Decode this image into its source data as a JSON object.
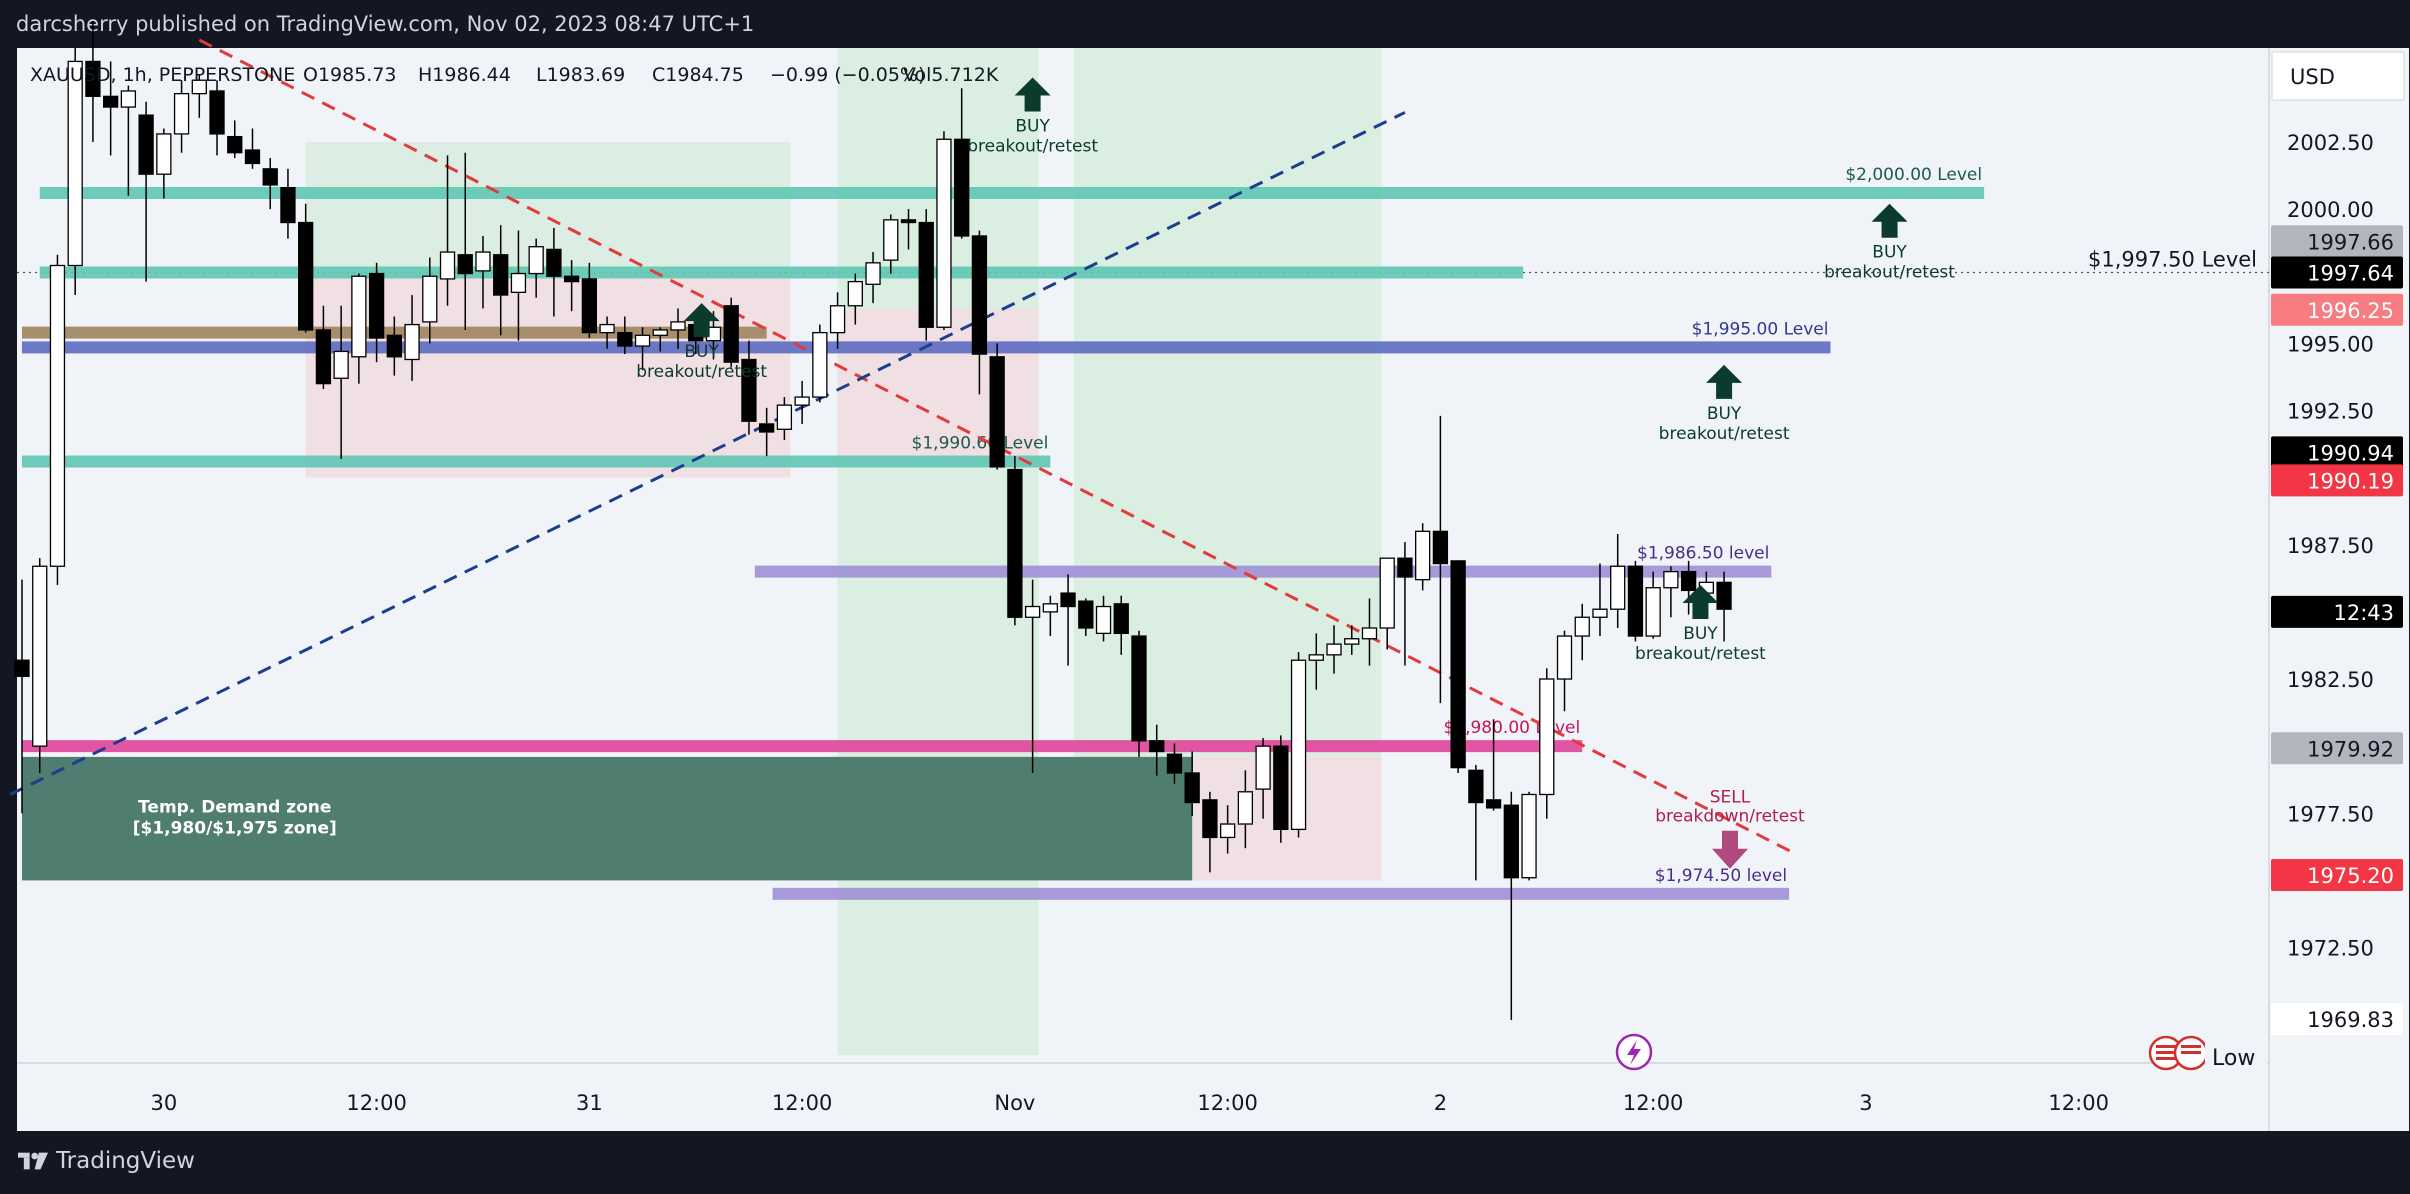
{
  "header": {
    "published_by": "darcsherry published on TradingView.com, Nov 02, 2023 08:47 UTC+1"
  },
  "footer": {
    "brand": "TradingView"
  },
  "colors": {
    "background": "#131722",
    "plot_bg": "#f0f4f8",
    "bull_candle": "#ffffff",
    "bear_candle": "#000000",
    "teal_level": "#5fc7b4",
    "magenta_level": "#e0449a",
    "purple_level": "#9f8fd6",
    "blue_level": "#5c6bc0",
    "brown_level": "#a0845c",
    "demand_zone": "#4f7d6f",
    "red_trend": "#e23b3b",
    "blue_trend": "#1c3e8c",
    "buy_arrow": "#0b3b2d",
    "sell_arrow": "#b04a7e"
  },
  "chart_data": {
    "type": "candlestick",
    "symbol_line": {
      "symbol": "XAUUSD, 1h, PEPPERSTONE",
      "open": "O1985.73",
      "high": "H1986.44",
      "low": "L1983.69",
      "close": "C1984.75",
      "change": "−0.99 (−0.05%)",
      "volume": "Vol5.712K"
    },
    "currency": "USD",
    "y_range": [
      1968.2,
      2006.0
    ],
    "y_ticks": [
      "2002.50",
      "2000.00",
      "1995.00",
      "1992.50",
      "1987.50",
      "1982.50",
      "1977.50",
      "1972.50"
    ],
    "x_range": [
      0,
      200
    ],
    "x_ticks": [
      {
        "label": "30",
        "x": 12
      },
      {
        "label": "12:00",
        "x": 30
      },
      {
        "label": "31",
        "x": 48
      },
      {
        "label": "12:00",
        "x": 66
      },
      {
        "label": "Nov",
        "x": 84
      },
      {
        "label": "12:00",
        "x": 102
      },
      {
        "label": "2",
        "x": 120
      },
      {
        "label": "12:00",
        "x": 138
      },
      {
        "label": "3",
        "x": 156
      },
      {
        "label": "12:00",
        "x": 174
      }
    ],
    "candles": [
      [
        0.0,
        1983.2,
        1986.2,
        1977.5,
        1982.6
      ],
      [
        1.5,
        1980.0,
        1987.0,
        1979.0,
        1986.7
      ],
      [
        3.0,
        1986.7,
        1998.3,
        1986.0,
        1997.9
      ],
      [
        4.5,
        1997.9,
        2006.0,
        1996.8,
        2005.5
      ],
      [
        6.0,
        2005.5,
        2007.0,
        2002.5,
        2004.2
      ],
      [
        7.5,
        2004.2,
        2005.5,
        2002.0,
        2003.8
      ],
      [
        9.0,
        2003.8,
        2004.6,
        2000.5,
        2004.4
      ],
      [
        10.5,
        2003.5,
        2004.0,
        1997.3,
        2001.3
      ],
      [
        12.0,
        2001.3,
        2003.0,
        2000.4,
        2002.8
      ],
      [
        13.5,
        2002.8,
        2004.8,
        2002.1,
        2004.3
      ],
      [
        15.0,
        2004.3,
        2005.0,
        2003.4,
        2004.8
      ],
      [
        16.5,
        2004.4,
        2004.8,
        2002.0,
        2002.8
      ],
      [
        18.0,
        2002.7,
        2003.3,
        2001.9,
        2002.1
      ],
      [
        19.5,
        2002.2,
        2003.0,
        2001.5,
        2001.7
      ],
      [
        21.0,
        2001.5,
        2001.9,
        2000.0,
        2000.9
      ],
      [
        22.5,
        2000.8,
        2001.5,
        1998.9,
        1999.5
      ],
      [
        24.0,
        1999.5,
        2000.2,
        1995.4,
        1995.5
      ],
      [
        25.5,
        1995.5,
        1996.4,
        1993.3,
        1993.5
      ],
      [
        27.0,
        1993.7,
        1996.4,
        1990.7,
        1994.7
      ],
      [
        28.5,
        1994.5,
        1997.6,
        1993.5,
        1997.5
      ],
      [
        30.0,
        1997.6,
        1998.0,
        1994.3,
        1995.2
      ],
      [
        31.5,
        1995.3,
        1996.0,
        1993.8,
        1994.5
      ],
      [
        33.0,
        1994.4,
        1996.8,
        1993.6,
        1995.7
      ],
      [
        34.5,
        1995.8,
        1998.2,
        1995.0,
        1997.5
      ],
      [
        36.0,
        1997.4,
        2002.0,
        1996.4,
        1998.4
      ],
      [
        37.5,
        1998.3,
        2002.1,
        1995.5,
        1997.6
      ],
      [
        39.0,
        1997.7,
        1999.0,
        1996.3,
        1998.4
      ],
      [
        40.5,
        1998.3,
        1999.4,
        1995.3,
        1996.8
      ],
      [
        42.0,
        1996.9,
        1999.2,
        1995.1,
        1997.6
      ],
      [
        43.5,
        1997.6,
        1998.9,
        1996.7,
        1998.6
      ],
      [
        45.0,
        1998.5,
        1999.3,
        1996.0,
        1997.5
      ],
      [
        46.5,
        1997.5,
        1998.1,
        1996.2,
        1997.3
      ],
      [
        48.0,
        1997.4,
        1998.0,
        1995.2,
        1995.4
      ],
      [
        49.5,
        1995.4,
        1996.0,
        1994.8,
        1995.7
      ],
      [
        51.0,
        1995.4,
        1996.0,
        1994.6,
        1994.9
      ],
      [
        52.5,
        1994.9,
        1995.6,
        1994.0,
        1995.3
      ],
      [
        54.0,
        1995.3,
        1995.6,
        1994.7,
        1995.5
      ],
      [
        55.5,
        1995.5,
        1996.3,
        1994.8,
        1995.8
      ],
      [
        57.0,
        1995.7,
        1996.0,
        1994.6,
        1995.1
      ],
      [
        58.5,
        1995.1,
        1996.2,
        1994.4,
        1995.6
      ],
      [
        60.0,
        1996.4,
        1996.7,
        1994.1,
        1994.3
      ],
      [
        61.5,
        1994.4,
        1995.1,
        1991.6,
        1992.1
      ],
      [
        63.0,
        1992.0,
        1992.6,
        1990.8,
        1991.7
      ],
      [
        64.5,
        1991.8,
        1993.0,
        1991.4,
        1992.7
      ],
      [
        66.0,
        1992.7,
        1993.6,
        1992.0,
        1993.0
      ],
      [
        67.5,
        1993.0,
        1995.7,
        1992.8,
        1995.4
      ],
      [
        69.0,
        1995.4,
        1996.9,
        1994.8,
        1996.4
      ],
      [
        70.5,
        1996.4,
        1997.6,
        1995.7,
        1997.3
      ],
      [
        72.0,
        1997.2,
        1998.4,
        1996.5,
        1998.0
      ],
      [
        73.5,
        1998.1,
        1999.8,
        1997.6,
        1999.6
      ],
      [
        75.0,
        1999.6,
        2000.0,
        1998.5,
        1999.5
      ],
      [
        76.5,
        1999.5,
        2000.0,
        1995.1,
        1995.6
      ],
      [
        78.0,
        1995.6,
        2002.9,
        1995.5,
        2002.6
      ],
      [
        79.5,
        2002.6,
        2004.5,
        1998.9,
        1999.0
      ],
      [
        81.0,
        1999.0,
        1999.2,
        1993.1,
        1994.6
      ],
      [
        82.5,
        1994.5,
        1995.0,
        1990.3,
        1990.4
      ],
      [
        84.0,
        1990.3,
        1990.8,
        1984.5,
        1984.8
      ],
      [
        85.5,
        1984.8,
        1986.2,
        1979.0,
        1985.2
      ],
      [
        87.0,
        1985.0,
        1985.6,
        1984.1,
        1985.3
      ],
      [
        88.5,
        1985.7,
        1986.4,
        1983.0,
        1985.2
      ],
      [
        90.0,
        1985.4,
        1985.5,
        1984.1,
        1984.4
      ],
      [
        91.5,
        1984.2,
        1985.6,
        1983.9,
        1985.2
      ],
      [
        93.0,
        1985.3,
        1985.6,
        1983.4,
        1984.2
      ],
      [
        94.5,
        1984.1,
        1984.3,
        1979.6,
        1980.2
      ],
      [
        96.0,
        1980.2,
        1980.8,
        1978.9,
        1979.8
      ],
      [
        97.5,
        1979.7,
        1980.1,
        1978.6,
        1979.0
      ],
      [
        99.0,
        1979.0,
        1979.8,
        1977.4,
        1977.9
      ],
      [
        100.5,
        1978.0,
        1978.3,
        1975.3,
        1976.6
      ],
      [
        102.0,
        1976.6,
        1977.8,
        1976.0,
        1977.1
      ],
      [
        103.5,
        1977.1,
        1979.1,
        1976.2,
        1978.3
      ],
      [
        105.0,
        1978.4,
        1980.3,
        1977.3,
        1980.0
      ],
      [
        106.5,
        1980.0,
        1980.4,
        1976.4,
        1976.9
      ],
      [
        108.0,
        1976.9,
        1983.5,
        1976.6,
        1983.2
      ],
      [
        109.5,
        1983.2,
        1984.2,
        1982.1,
        1983.4
      ],
      [
        111.0,
        1983.4,
        1984.5,
        1982.7,
        1983.8
      ],
      [
        112.5,
        1983.8,
        1984.5,
        1983.4,
        1984.0
      ],
      [
        114.0,
        1984.0,
        1985.5,
        1983.0,
        1984.4
      ],
      [
        115.5,
        1984.4,
        1987.0,
        1983.6,
        1987.0
      ],
      [
        117.0,
        1987.0,
        1987.6,
        1983.0,
        1986.3
      ],
      [
        118.5,
        1986.2,
        1988.3,
        1985.8,
        1988.0
      ],
      [
        120.0,
        1988.0,
        1992.3,
        1981.6,
        1986.8
      ],
      [
        121.5,
        1986.9,
        1986.9,
        1979.0,
        1979.2
      ],
      [
        123.0,
        1979.1,
        1979.3,
        1975.0,
        1977.9
      ],
      [
        124.5,
        1978.0,
        1981.0,
        1977.6,
        1977.7
      ],
      [
        126.0,
        1977.8,
        1978.3,
        1969.8,
        1975.1
      ],
      [
        127.5,
        1975.1,
        1978.3,
        1975.0,
        1978.2
      ],
      [
        129.0,
        1978.2,
        1982.9,
        1977.3,
        1982.5
      ],
      [
        130.5,
        1982.5,
        1984.3,
        1981.3,
        1984.1
      ],
      [
        132.0,
        1984.1,
        1985.3,
        1983.2,
        1984.8
      ],
      [
        133.5,
        1984.8,
        1986.8,
        1984.1,
        1985.1
      ],
      [
        135.0,
        1985.1,
        1987.9,
        1984.4,
        1986.7
      ],
      [
        136.5,
        1986.7,
        1986.9,
        1983.9,
        1984.1
      ],
      [
        138.0,
        1984.1,
        1986.5,
        1984.0,
        1985.9
      ],
      [
        139.5,
        1985.9,
        1986.7,
        1984.8,
        1986.5
      ],
      [
        141.0,
        1986.5,
        1986.9,
        1984.9,
        1985.8
      ],
      [
        142.5,
        1985.7,
        1986.5,
        1984.9,
        1986.1
      ],
      [
        144.0,
        1986.1,
        1986.5,
        1983.9,
        1985.1
      ]
    ],
    "levels": [
      {
        "label": "$2,000.00 Level",
        "price": 2000.6,
        "x_start": 1.5,
        "x_end": 166,
        "color": "#5fc7b4",
        "label_color": "#1b5a4e"
      },
      {
        "label": "",
        "price": 1997.64,
        "x_start": 1.5,
        "x_end": 127,
        "color": "#5fc7b4",
        "label_color": "#1b5a4e"
      },
      {
        "label": "",
        "price": 1995.4,
        "x_start": 0,
        "x_end": 63,
        "color": "#a0845c",
        "label_color": "#5a4020"
      },
      {
        "label": "$1,995.00 Level",
        "price": 1994.85,
        "x_start": 0,
        "x_end": 153,
        "color": "#5c6bc0",
        "label_color": "#2e3a8c"
      },
      {
        "label": "$1,990.60 Level",
        "price": 1990.6,
        "x_start": 0,
        "x_end": 87,
        "color": "#5fc7b4",
        "label_color": "#1b5a4e"
      },
      {
        "label": "$1,986.50 level",
        "price": 1986.5,
        "x_start": 62,
        "x_end": 148,
        "color": "#9f8fd6",
        "label_color": "#4b2e8a"
      },
      {
        "label": "$1,980.00 Level",
        "price": 1980.0,
        "x_start": 0,
        "x_end": 132,
        "color": "#e0449a",
        "label_color": "#c2185b"
      },
      {
        "label": "$1,974.50 level",
        "price": 1974.5,
        "x_start": 63.5,
        "x_end": 149.5,
        "color": "#9f8fd6",
        "label_color": "#4b2e8a"
      }
    ],
    "demand_zone": {
      "label": "Temp. Demand zone",
      "sublabel": "[$1,980/$1,975 zone]",
      "price_top": 1979.6,
      "price_bottom": 1975.0,
      "x_start": 0,
      "x_end": 99
    },
    "shaded_boxes": [
      {
        "x1": 24,
        "x2": 65,
        "p1": 2002.5,
        "p2": 1990.0,
        "color": "#d8ecdf"
      },
      {
        "x1": 24,
        "x2": 65,
        "p1": 1997.6,
        "p2": 1990.0,
        "color": "#f5dde3"
      },
      {
        "x1": 69,
        "x2": 86,
        "p1": 2006.0,
        "p2": 1968.5,
        "color": "#d6ecdd"
      },
      {
        "x1": 69,
        "x2": 86,
        "p1": 1996.3,
        "p2": 1990.5,
        "color": "#f5dde3"
      },
      {
        "x1": 89,
        "x2": 115,
        "p1": 2006.0,
        "p2": 1975.0,
        "color": "#d6ecdd"
      },
      {
        "x1": 99,
        "x2": 115,
        "p1": 1979.6,
        "p2": 1975.0,
        "color": "#f5dde3"
      }
    ],
    "trendlines": [
      {
        "x1": 15,
        "p1": 2006.3,
        "x2": 150,
        "p2": 1976.0,
        "color": "#e23b3b"
      },
      {
        "x1": -1,
        "p1": 1978.2,
        "x2": 117,
        "p2": 2003.6,
        "color": "#1c3e8c"
      }
    ],
    "signals": [
      {
        "type": "buy",
        "label": "BUY",
        "sublabel": "breakout/retest",
        "x": 85.5,
        "price": 2004.9,
        "text_above_arrow": false
      },
      {
        "type": "buy",
        "label": "BUY",
        "sublabel": "breakout/retest",
        "x": 57.5,
        "price": 1996.5,
        "text_above_arrow": false
      },
      {
        "type": "buy",
        "label": "BUY",
        "sublabel": "breakout/retest",
        "x": 158,
        "price": 2000.2,
        "text_above_arrow": false
      },
      {
        "type": "buy",
        "label": "BUY",
        "sublabel": "breakout/retest",
        "x": 144,
        "price": 1994.2,
        "text_above_arrow": false
      },
      {
        "type": "buy",
        "label": "BUY",
        "sublabel": "breakout/retest",
        "x": 142,
        "price": 1986.0,
        "text_above_arrow": false
      },
      {
        "type": "sell",
        "label": "SELL",
        "sublabel": "breakdown/retest",
        "x": 144.5,
        "price": 1977.0,
        "text_above_arrow": true
      }
    ],
    "level_callout": {
      "label": "$1,997.50 Level",
      "price": 1997.64
    },
    "price_badges": [
      {
        "label": "1997.66",
        "price": 1998.8,
        "bg": "#b2b5be",
        "fg": "#131722"
      },
      {
        "label": "1997.64",
        "price": 1997.64,
        "bg": "#000000",
        "fg": "#ffffff"
      },
      {
        "label": "1996.25",
        "price": 1996.25,
        "bg": "#f77c80",
        "fg": "#ffffff"
      },
      {
        "label": "1990.94",
        "price": 1990.94,
        "bg": "#000000",
        "fg": "#ffffff"
      },
      {
        "label": "1990.19",
        "price": 1989.9,
        "bg": "#f23645",
        "fg": "#ffffff"
      },
      {
        "label": "12:43",
        "price": 1985.0,
        "bg": "#000000",
        "fg": "#ffffff"
      },
      {
        "label": "1979.92",
        "price": 1979.92,
        "bg": "#b2b5be",
        "fg": "#131722"
      },
      {
        "label": "1975.20",
        "price": 1975.2,
        "bg": "#f23645",
        "fg": "#ffffff"
      },
      {
        "label": "1969.83",
        "price": 1969.83,
        "bg": "#ffffff",
        "fg": "#131722"
      }
    ],
    "low_label": "Low",
    "last_price_line": 1997.64
  }
}
